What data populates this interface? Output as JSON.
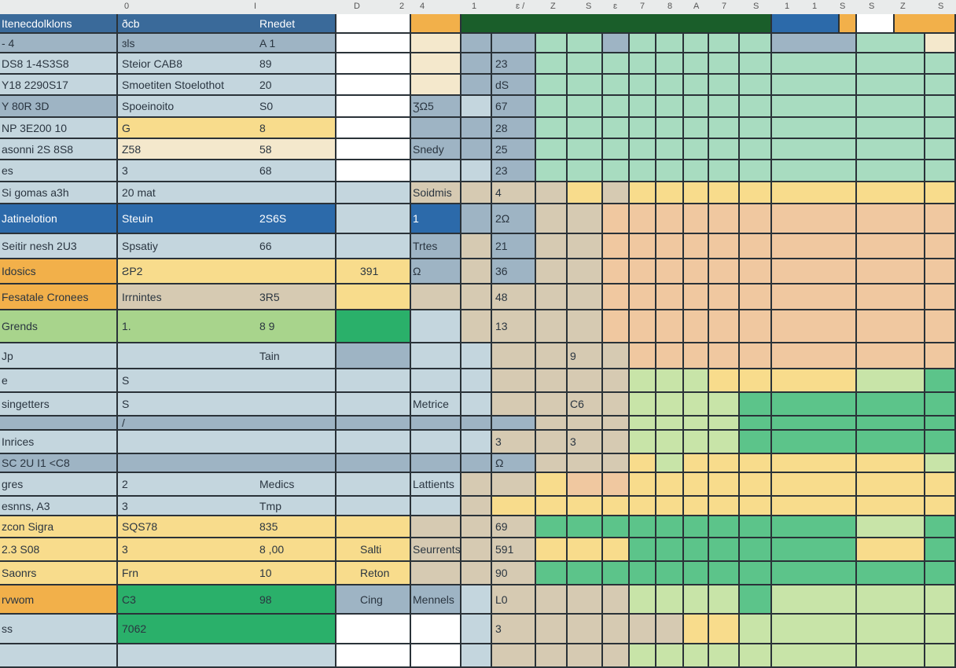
{
  "column_headers": [
    "0",
    "I",
    "D",
    "2",
    "4",
    "1",
    "ɛ /",
    "Z",
    "S",
    "ɛ",
    "7",
    "8",
    "A",
    "7",
    "S",
    "1",
    "1",
    "S",
    "S",
    "Z",
    "S"
  ],
  "palette": {
    "B": "#3a6a9a",
    "b": "#c4d6de",
    "s": "#9eb4c4",
    "w": "#ffffff",
    "y": "#f8dc8c",
    "c": "#f4e8cc",
    "o": "#f2b04a",
    "O": "#f0c8a0",
    "t": "#d6cab2",
    "l": "#a8d48c",
    "G": "#2ab06a",
    "g": "#a8dcc0",
    "m": "#5cc48a",
    "k": "#2c6aaa",
    "L": "#c8e4a8",
    "D": "#1a5e2a"
  },
  "rows": [
    {
      "a": "Itenecdolklons",
      "b": "ðcb",
      "b2": "Rnedet",
      "c": "",
      "d": "",
      "g": "",
      "h": "",
      "colors": "BBwoDD",
      "heat": "DDDDDDDDkcw"
    },
    {
      "a": "- 4",
      "b": "ɜls",
      "b2": "A 1",
      "c": "",
      "d": "",
      "g": "",
      "h": "",
      "colors": "sswcss",
      "heat": "ggsgggggsgc"
    },
    {
      "a": "DS8 1-4S3S8",
      "b": "Steior CAB8",
      "b2": "89",
      "c": "",
      "d": "",
      "g": "23",
      "h": "",
      "colors": "bbwcss",
      "heat": "ggggggggggg"
    },
    {
      "a": "Y18 2290S17",
      "b": "Smoetiten Stoelothot",
      "b2": "20",
      "c": "",
      "d": "",
      "g": "dS",
      "h": "",
      "colors": "bbwcss",
      "heat": "ggggggggggg"
    },
    {
      "a": "Y 80R 3D",
      "b": "Spoeinoito",
      "b2": "S0",
      "c": "",
      "d": "ƷΩ5",
      "g": "67",
      "h": "",
      "colors": "sbwsbs",
      "heat": "ggggggggggg"
    },
    {
      "a": "NP 3E200 10",
      "b": "G",
      "b2": "8",
      "c": "",
      "d": "",
      "g": "28",
      "h": "",
      "colors": "bywsss",
      "heat": "ggggggggggg"
    },
    {
      "a": "asonni 2S 8S8",
      "b": "Z58",
      "b2": "58",
      "c": "",
      "d": "Snedy",
      "g": "25",
      "h": "",
      "colors": "bcwsss",
      "heat": "ggggggggggg"
    },
    {
      "a": "es",
      "b": "3",
      "b2": "68",
      "c": "",
      "d": "",
      "g": "23",
      "h": "",
      "colors": "bbwbbs",
      "heat": "ggggggggggg"
    },
    {
      "a": "Si gomas a3h",
      "b": "20 mat",
      "b2": "",
      "c": "",
      "d": "Soidmis",
      "g": "4",
      "h": "",
      "colors": "bbbttt",
      "heat": "tytyyyyyyyy"
    },
    {
      "a": "Jatinelotion",
      "b": "Steuin",
      "b2": "2S6S",
      "c": "",
      "d": "1",
      "g": "2Ω",
      "h": "",
      "colors": "kkbkss",
      "heat": "ttOOOOOOOOO"
    },
    {
      "a": "Seitir nesh 2U3",
      "b": "Spsatiy",
      "b2": "66",
      "c": "",
      "d": "Trtes",
      "g": "21",
      "h": "",
      "colors": "bbbsts",
      "heat": "ttOOOOOOOOO"
    },
    {
      "a": "Idosics",
      "b": "ƧP2",
      "b2": "",
      "c": "391",
      "d": "Ω",
      "g": "36",
      "h": "",
      "colors": "oyysts",
      "heat": "ttOOOOOOOOO"
    },
    {
      "a": "Fesatale Cronees",
      "b": "Irrnintes",
      "b2": "3R5",
      "c": "",
      "d": "",
      "g": "48",
      "h": "",
      "colors": "otyttt",
      "heat": "ttOOOOOOOOO"
    },
    {
      "a": "Grends",
      "b": "1.",
      "b2": "8 9",
      "c": "",
      "d": "",
      "g": "13",
      "h": "",
      "colors": "llGbtt",
      "heat": "ttOOOOOOOOO"
    },
    {
      "a": "Jp",
      "b": "",
      "b2": "Tain",
      "c": "",
      "d": "",
      "g": "",
      "h": "9",
      "colors": "bbsbbt",
      "heat": "tttOOOOOOOO"
    },
    {
      "a": "e",
      "b": "S",
      "b2": "",
      "c": "",
      "d": "",
      "g": "",
      "h": "",
      "colors": "bbbbbt",
      "heat": "tttLLLyyyLm"
    },
    {
      "a": "singetters",
      "b": "S",
      "b2": "",
      "c": "",
      "d": "Metrice",
      "g": "",
      "h": "C6",
      "colors": "bbbbbt",
      "heat": "tttLLLLmmmm"
    },
    {
      "a": "",
      "b": "/",
      "b2": "",
      "c": "",
      "d": "",
      "g": "",
      "h": "",
      "colors": "sssssst",
      "heat": "tttLLLLmmmm"
    },
    {
      "a": "Inrices",
      "b": "",
      "b2": "",
      "c": "",
      "d": "",
      "g": "3",
      "h": "3",
      "colors": "bbbbbt",
      "heat": "tttLLLLmmmm"
    },
    {
      "a": "SC 2U I1 <C8",
      "b": "",
      "b2": "",
      "c": "",
      "d": "",
      "g": "Ω",
      "h": "",
      "colors": "ssssss",
      "heat": "tttyLyyyyyL"
    },
    {
      "a": "gres",
      "b": "2",
      "b2": "Medics",
      "c": "",
      "d": "Lattients",
      "g": "",
      "h": "",
      "colors": "bbbbtt",
      "heat": "yOOyyyyyyyy"
    },
    {
      "a": "esnns, A3",
      "b": "3",
      "b2": "Tmp",
      "c": "",
      "d": "",
      "g": "",
      "h": "",
      "colors": "bbbbty",
      "heat": "yyyyyyyyyyy"
    },
    {
      "a": "zcon Sigra",
      "b": "SQS78",
      "b2": "835",
      "c": "",
      "d": "",
      "g": "69",
      "h": "",
      "colors": "yyyttt",
      "heat": "mmmmmmmmmLm"
    },
    {
      "a": "2.3 S08",
      "b": "3",
      "b2": "8 ,00",
      "c": "Salti",
      "d": "Seurrents",
      "g": "591",
      "h": "",
      "colors": "yyyttt",
      "heat": "yyymmmmmmym"
    },
    {
      "a": "Saonrs",
      "b": "Frn",
      "b2": "10",
      "c": "Reton",
      "d": "",
      "g": "90",
      "h": "",
      "colors": "yyyttt",
      "heat": "mmmmmmmmmmm"
    },
    {
      "a": "rvwom",
      "b": "C3",
      "b2": "98",
      "c": "Cing",
      "d": "Mennels",
      "g": "L0",
      "h": "",
      "colors": "oGssbt",
      "heat": "tttLLLLmLLL"
    },
    {
      "a": "ss",
      "b": "7062",
      "b2": "",
      "c": "",
      "d": "",
      "g": "3",
      "h": "",
      "colors": "bGwwbt",
      "heat": "tttttyyLLLL"
    },
    {
      "a": "",
      "b": "",
      "b2": "",
      "c": "",
      "d": "",
      "g": "",
      "h": "",
      "colors": "bbwwbt",
      "heat": "tttLLLLLLLL"
    }
  ]
}
